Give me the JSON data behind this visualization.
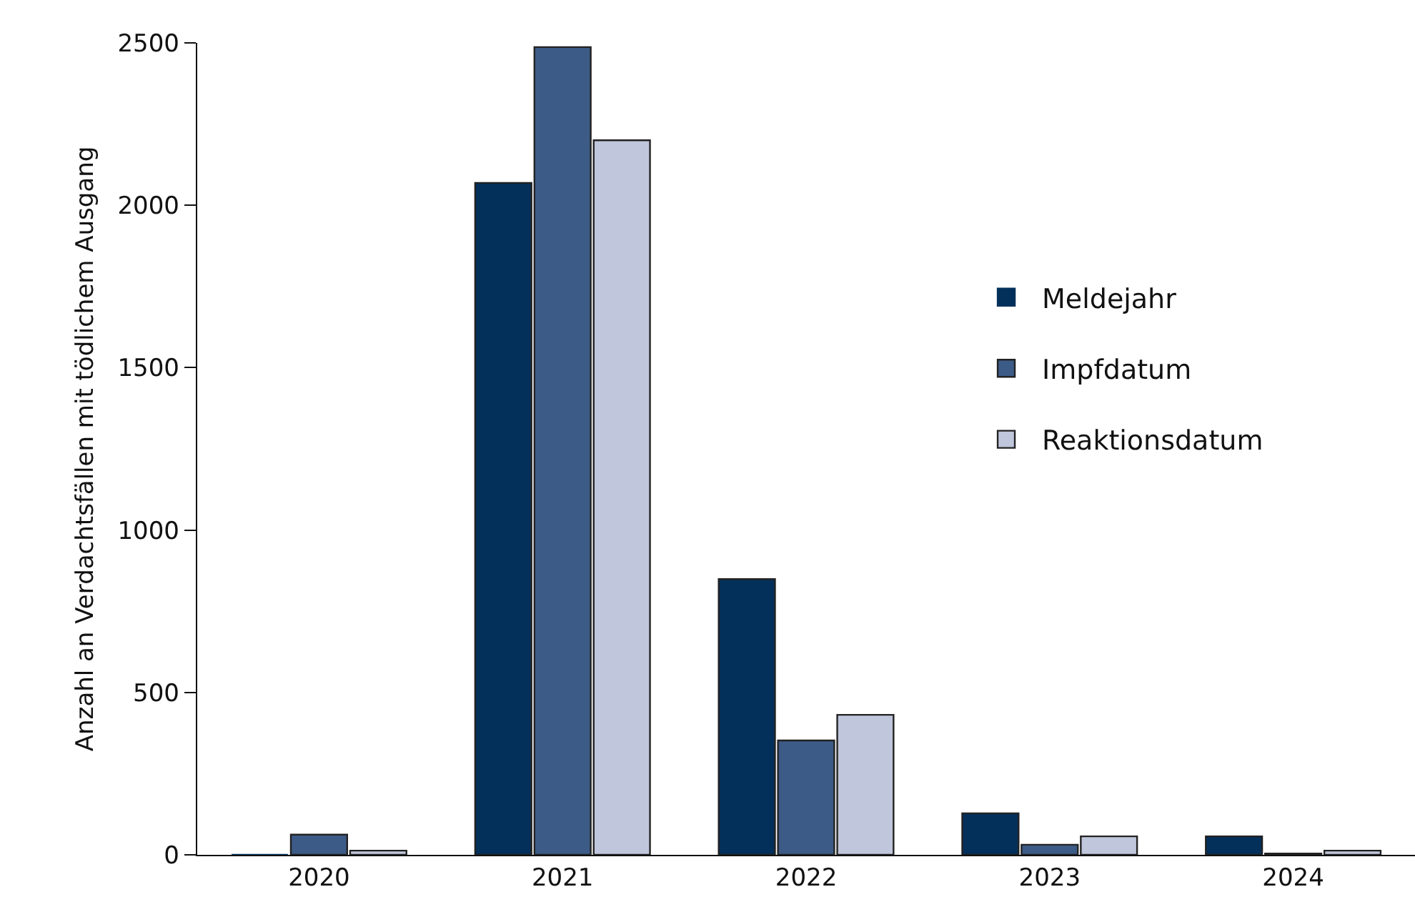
{
  "chart_data": {
    "type": "bar",
    "ylabel": "Anzahl an Verdachtsfällen mit tödlichem Ausgang",
    "categories": [
      "2020",
      "2021",
      "2022",
      "2023",
      "2024"
    ],
    "series": [
      {
        "name": "Meldejahr",
        "color": "#03305a",
        "values": [
          0,
          2069,
          849,
          128,
          57
        ]
      },
      {
        "name": "Impfdatum",
        "color": "#3d5b87",
        "values": [
          62,
          2487,
          352,
          31,
          4
        ]
      },
      {
        "name": "Reaktionsdatum",
        "color": "#c0c7dc",
        "values": [
          13,
          2200,
          431,
          57,
          13
        ]
      }
    ],
    "ylim": [
      0,
      2500
    ],
    "yticks": [
      0,
      500,
      1000,
      1500,
      2000,
      2500
    ],
    "grid": false,
    "legend": "right"
  }
}
